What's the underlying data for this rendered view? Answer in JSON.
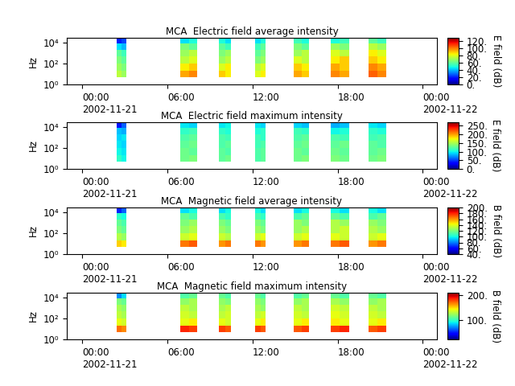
{
  "chart_data": [
    {
      "type": "heatmap",
      "title": "MCA  Electric field average intensity",
      "y_label": "Hz",
      "log": "y",
      "xlim": [
        -1.1,
        25.0
      ],
      "xticks": [
        {
          "value": 0,
          "label": "00:00\n2002-11-21"
        },
        {
          "value": 6,
          "label": "06:00"
        },
        {
          "value": 12,
          "label": "12:00"
        },
        {
          "value": 18,
          "label": "18:00"
        },
        {
          "value": 24,
          "label": "00:00\n2002-11-22"
        }
      ],
      "ylim": [
        1,
        30000
      ],
      "yticks": [
        {
          "value": 1,
          "label": "10⁰"
        },
        {
          "value": 100,
          "label": "10²"
        },
        {
          "value": 10000,
          "label": "10⁴"
        }
      ],
      "time_edges": [
        2.4,
        2.75,
        3.1,
        6.9,
        7.5,
        8.1,
        9.6,
        10.05,
        10.5,
        12.2,
        12.55,
        12.9,
        14.9,
        15.45,
        16.0,
        17.5,
        18.15,
        18.8,
        20.2,
        20.8,
        21.4
      ],
      "freq_edges": [
        5,
        20,
        100,
        500,
        2000,
        8000,
        30000
      ],
      "cells": [
        [
          75,
          70,
          null,
          95,
          100,
          null,
          90,
          85,
          null,
          80,
          85,
          null,
          95,
          90,
          null,
          100,
          95,
          null,
          105,
          100
        ],
        [
          70,
          65,
          null,
          85,
          90,
          null,
          80,
          85,
          null,
          75,
          80,
          null,
          90,
          85,
          null,
          95,
          90,
          null,
          100,
          95
        ],
        [
          65,
          60,
          null,
          75,
          80,
          null,
          70,
          75,
          null,
          65,
          70,
          null,
          80,
          75,
          null,
          85,
          90,
          null,
          90,
          85
        ],
        [
          60,
          55,
          null,
          70,
          75,
          null,
          65,
          70,
          null,
          60,
          65,
          null,
          70,
          75,
          null,
          80,
          75,
          null,
          85,
          80
        ],
        [
          45,
          40,
          null,
          65,
          60,
          null,
          60,
          55,
          null,
          55,
          60,
          null,
          65,
          60,
          null,
          70,
          65,
          null,
          75,
          70
        ],
        [
          20,
          25,
          null,
          45,
          50,
          null,
          50,
          45,
          null,
          45,
          50,
          null,
          55,
          50,
          null,
          50,
          55,
          null,
          60,
          55
        ]
      ],
      "colorbar_label": "E field (dB)",
      "colorbar_range": [
        0,
        130
      ],
      "colorbar_ticks": [
        {
          "value": 0,
          "label": "0."
        },
        {
          "value": 20,
          "label": "20."
        },
        {
          "value": 40,
          "label": "40."
        },
        {
          "value": 60,
          "label": "60."
        },
        {
          "value": 80,
          "label": "80."
        },
        {
          "value": 100,
          "label": "100."
        },
        {
          "value": 120,
          "label": "120."
        }
      ]
    },
    {
      "type": "heatmap",
      "title": "MCA  Electric field maximum intensity",
      "y_label": "Hz",
      "log": "y",
      "xlim": [
        -1.1,
        25.0
      ],
      "xticks": [
        {
          "value": 0,
          "label": "00:00\n2002-11-21"
        },
        {
          "value": 6,
          "label": "06:00"
        },
        {
          "value": 12,
          "label": "12:00"
        },
        {
          "value": 18,
          "label": "18:00"
        },
        {
          "value": 24,
          "label": "00:00\n2002-11-22"
        }
      ],
      "ylim": [
        1,
        30000
      ],
      "yticks": [
        {
          "value": 1,
          "label": "10⁰"
        },
        {
          "value": 100,
          "label": "10²"
        },
        {
          "value": 10000,
          "label": "10⁴"
        }
      ],
      "time_edges": [
        2.4,
        2.75,
        3.1,
        6.9,
        7.5,
        8.1,
        9.6,
        10.05,
        10.5,
        12.2,
        12.55,
        12.9,
        14.9,
        15.45,
        16.0,
        17.5,
        18.15,
        18.8,
        20.2,
        20.8,
        21.4
      ],
      "freq_edges": [
        5,
        20,
        100,
        500,
        2000,
        8000,
        30000
      ],
      "cells": [
        [
          110,
          100,
          null,
          130,
          135,
          null,
          125,
          130,
          null,
          120,
          125,
          null,
          130,
          135,
          null,
          135,
          130,
          null,
          130,
          135
        ],
        [
          100,
          95,
          null,
          130,
          125,
          null,
          125,
          120,
          null,
          120,
          125,
          null,
          130,
          125,
          null,
          130,
          125,
          null,
          125,
          130
        ],
        [
          95,
          90,
          null,
          125,
          130,
          null,
          120,
          125,
          null,
          115,
          120,
          null,
          125,
          130,
          null,
          125,
          130,
          null,
          125,
          120
        ],
        [
          90,
          95,
          null,
          120,
          125,
          null,
          120,
          115,
          null,
          115,
          110,
          null,
          120,
          125,
          null,
          120,
          115,
          null,
          115,
          120
        ],
        [
          85,
          80,
          null,
          110,
          115,
          null,
          110,
          105,
          null,
          105,
          110,
          null,
          115,
          110,
          null,
          100,
          105,
          null,
          110,
          105
        ],
        [
          40,
          60,
          null,
          95,
          90,
          null,
          95,
          100,
          null,
          95,
          90,
          null,
          90,
          85,
          null,
          80,
          85,
          null,
          95,
          90
        ]
      ],
      "colorbar_label": "E field (dB)",
      "colorbar_range": [
        0,
        270
      ],
      "colorbar_ticks": [
        {
          "value": 0,
          "label": "0."
        },
        {
          "value": 50,
          "label": "50."
        },
        {
          "value": 100,
          "label": "100."
        },
        {
          "value": 150,
          "label": "150."
        },
        {
          "value": 200,
          "label": "200."
        },
        {
          "value": 250,
          "label": "250."
        }
      ]
    },
    {
      "type": "heatmap",
      "title": "MCA  Magnetic field average intensity",
      "y_label": "Hz",
      "log": "y",
      "xlim": [
        -1.1,
        25.0
      ],
      "xticks": [
        {
          "value": 0,
          "label": "00:00\n2002-11-21"
        },
        {
          "value": 6,
          "label": "06:00"
        },
        {
          "value": 12,
          "label": "12:00"
        },
        {
          "value": 18,
          "label": "18:00"
        },
        {
          "value": 24,
          "label": "00:00\n2002-11-22"
        }
      ],
      "ylim": [
        1,
        30000
      ],
      "yticks": [
        {
          "value": 1,
          "label": "10⁰"
        },
        {
          "value": 100,
          "label": "10²"
        },
        {
          "value": 10000,
          "label": "10⁴"
        }
      ],
      "time_edges": [
        2.4,
        2.75,
        3.1,
        6.9,
        7.5,
        8.1,
        9.6,
        10.05,
        10.5,
        12.2,
        12.55,
        12.9,
        14.9,
        15.45,
        16.0,
        17.5,
        18.15,
        18.8,
        20.2,
        20.8,
        21.4
      ],
      "freq_edges": [
        5,
        20,
        100,
        500,
        2000,
        8000,
        30000
      ],
      "cells": [
        [
          150,
          145,
          null,
          165,
          170,
          null,
          160,
          165,
          null,
          165,
          160,
          null,
          160,
          165,
          null,
          165,
          170,
          null,
          160,
          165
        ],
        [
          130,
          125,
          null,
          135,
          140,
          null,
          135,
          130,
          null,
          135,
          140,
          null,
          135,
          140,
          null,
          140,
          135,
          null,
          135,
          140
        ],
        [
          120,
          115,
          null,
          125,
          130,
          null,
          125,
          120,
          null,
          125,
          120,
          null,
          125,
          130,
          null,
          130,
          135,
          null,
          130,
          125
        ],
        [
          115,
          110,
          null,
          120,
          125,
          null,
          120,
          115,
          null,
          120,
          115,
          null,
          125,
          120,
          null,
          130,
          125,
          null,
          125,
          120
        ],
        [
          105,
          100,
          null,
          115,
          110,
          null,
          110,
          105,
          null,
          110,
          105,
          null,
          110,
          115,
          null,
          115,
          110,
          null,
          110,
          115
        ],
        [
          65,
          75,
          null,
          95,
          100,
          null,
          95,
          100,
          null,
          100,
          95,
          null,
          95,
          100,
          null,
          100,
          95,
          null,
          100,
          95
        ]
      ],
      "colorbar_label": "B field (dB)",
      "colorbar_range": [
        40,
        200
      ],
      "colorbar_ticks": [
        {
          "value": 40,
          "label": "40."
        },
        {
          "value": 60,
          "label": "60."
        },
        {
          "value": 80,
          "label": "80."
        },
        {
          "value": 100,
          "label": "100."
        },
        {
          "value": 120,
          "label": "120."
        },
        {
          "value": 140,
          "label": "140."
        },
        {
          "value": 160,
          "label": "160."
        },
        {
          "value": 180,
          "label": "180."
        },
        {
          "value": 200,
          "label": "200."
        }
      ]
    },
    {
      "type": "heatmap",
      "title": "MCA  Magnetic field maximum intensity",
      "y_label": "Hz",
      "log": "y",
      "xlim": [
        -1.1,
        25.0
      ],
      "xticks": [
        {
          "value": 0,
          "label": "00:00\n2002-11-21"
        },
        {
          "value": 6,
          "label": "06:00"
        },
        {
          "value": 12,
          "label": "12:00"
        },
        {
          "value": 18,
          "label": "18:00"
        },
        {
          "value": 24,
          "label": "00:00\n2002-11-22"
        }
      ],
      "ylim": [
        1,
        30000
      ],
      "yticks": [
        {
          "value": 1,
          "label": "10⁰"
        },
        {
          "value": 100,
          "label": "10²"
        },
        {
          "value": 10000,
          "label": "10⁴"
        }
      ],
      "time_edges": [
        2.4,
        2.75,
        3.1,
        6.9,
        7.5,
        8.1,
        9.6,
        10.05,
        10.5,
        12.2,
        12.55,
        12.9,
        14.9,
        15.45,
        16.0,
        17.5,
        18.15,
        18.8,
        20.2,
        20.8,
        21.4
      ],
      "freq_edges": [
        5,
        20,
        100,
        500,
        2000,
        8000,
        30000
      ],
      "cells": [
        [
          170,
          165,
          null,
          185,
          180,
          null,
          180,
          175,
          null,
          180,
          175,
          null,
          175,
          180,
          null,
          180,
          185,
          null,
          175,
          180
        ],
        [
          140,
          135,
          null,
          140,
          145,
          null,
          140,
          135,
          null,
          140,
          145,
          null,
          140,
          145,
          null,
          145,
          140,
          null,
          140,
          145
        ],
        [
          130,
          125,
          null,
          135,
          130,
          null,
          130,
          135,
          null,
          130,
          135,
          null,
          135,
          130,
          null,
          140,
          135,
          null,
          135,
          130
        ],
        [
          125,
          120,
          null,
          130,
          125,
          null,
          125,
          130,
          null,
          125,
          120,
          null,
          130,
          125,
          null,
          135,
          130,
          null,
          130,
          125
        ],
        [
          115,
          110,
          null,
          120,
          125,
          null,
          120,
          115,
          null,
          120,
          115,
          null,
          120,
          125,
          null,
          125,
          120,
          null,
          120,
          125
        ],
        [
          70,
          85,
          null,
          105,
          110,
          null,
          110,
          105,
          null,
          110,
          105,
          null,
          105,
          110,
          null,
          110,
          105,
          null,
          110,
          105
        ]
      ],
      "colorbar_label": "B field (dB)",
      "colorbar_range": [
        20,
        210
      ],
      "colorbar_ticks": [
        {
          "value": 100,
          "label": "100."
        },
        {
          "value": 200,
          "label": "200."
        }
      ]
    }
  ]
}
